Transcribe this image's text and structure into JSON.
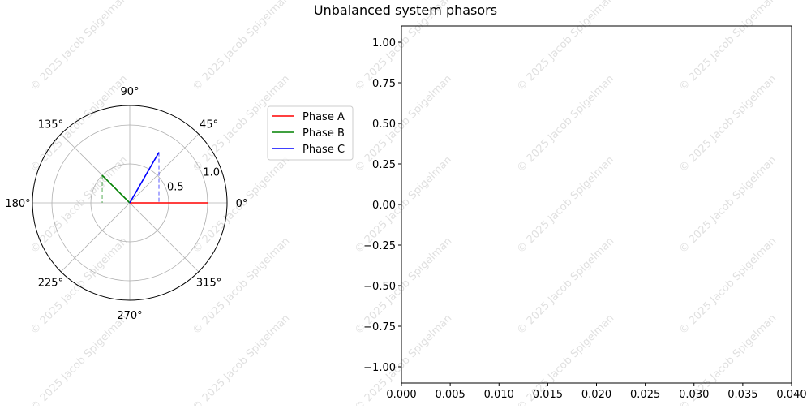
{
  "title": "Unbalanced system phasors",
  "watermark": "© 2025 Jacob Spigelman",
  "chart_data": [
    {
      "type": "polar",
      "angle_ticks": [
        "0°",
        "45°",
        "90°",
        "135°",
        "180°",
        "225°",
        "270°",
        "315°"
      ],
      "angle_tick_values_deg": [
        0,
        45,
        90,
        135,
        180,
        225,
        270,
        315
      ],
      "radial_ticks": [
        0.5,
        1.0
      ],
      "radial_tick_labels": [
        "0.5",
        "1.0"
      ],
      "rmax": 1.25,
      "grid": true,
      "legend_position": "right",
      "series": [
        {
          "name": "Phase A",
          "color": "#ff0000",
          "magnitude": 1.0,
          "angle_deg": 0
        },
        {
          "name": "Phase B",
          "color": "#008000",
          "magnitude": 0.5,
          "angle_deg": 135
        },
        {
          "name": "Phase C",
          "color": "#0000ff",
          "magnitude": 0.75,
          "angle_deg": 60
        }
      ],
      "projections": [
        {
          "series": "Phase B",
          "color": "#008000"
        },
        {
          "series": "Phase C",
          "color": "#0000ff"
        }
      ]
    },
    {
      "type": "line",
      "xlim": [
        0.0,
        0.04
      ],
      "ylim": [
        -1.1,
        1.1
      ],
      "x_ticks": [
        "0.000",
        "0.005",
        "0.010",
        "0.015",
        "0.020",
        "0.025",
        "0.030",
        "0.035",
        "0.040"
      ],
      "x_tick_values": [
        0.0,
        0.005,
        0.01,
        0.015,
        0.02,
        0.025,
        0.03,
        0.035,
        0.04
      ],
      "y_ticks": [
        "1.00",
        "0.75",
        "0.50",
        "0.25",
        "0.00",
        "−0.25",
        "−0.50",
        "−0.75",
        "−1.00"
      ],
      "y_tick_values": [
        1.0,
        0.75,
        0.5,
        0.25,
        0.0,
        -0.25,
        -0.5,
        -0.75,
        -1.0
      ],
      "series": [],
      "grid": false
    }
  ]
}
